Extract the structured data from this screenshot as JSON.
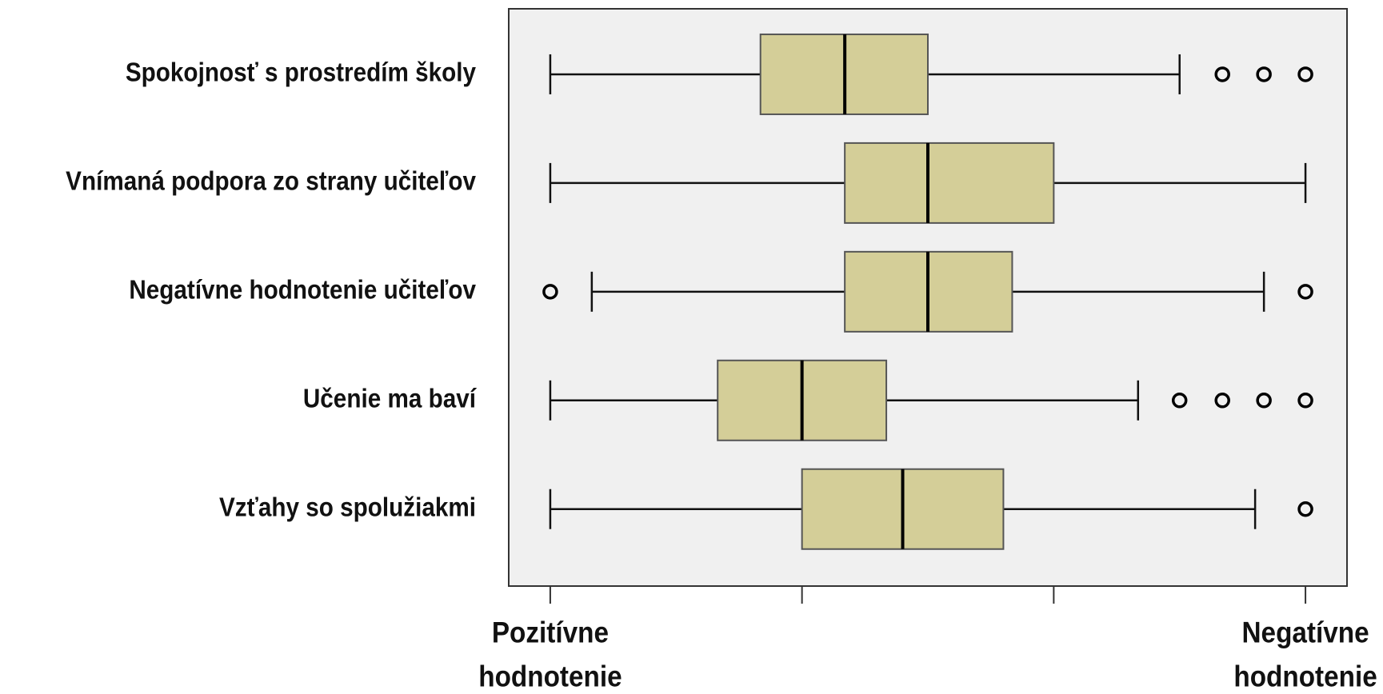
{
  "chart_data": {
    "type": "boxplot",
    "orientation": "horizontal",
    "categories": [
      "Spokojnosť s prostredím školy",
      "Vnímaná podpora zo strany učiteľov",
      "Negatívne hodnotenie učiteľov",
      "Učenie ma baví",
      "Vzťahy so spolužiakmi"
    ],
    "boxes": [
      {
        "whislo": 1.0,
        "q1": 1.835,
        "med": 2.17,
        "q3": 2.5,
        "whishi": 3.5,
        "fliers": [
          3.67,
          3.835,
          4.0
        ]
      },
      {
        "whislo": 1.0,
        "q1": 2.17,
        "med": 2.5,
        "q3": 3.0,
        "whishi": 4.0,
        "fliers": []
      },
      {
        "whislo": 1.165,
        "q1": 2.17,
        "med": 2.5,
        "q3": 2.835,
        "whishi": 3.835,
        "fliers": [
          1.0,
          4.0
        ]
      },
      {
        "whislo": 1.0,
        "q1": 1.665,
        "med": 2.0,
        "q3": 2.335,
        "whishi": 3.335,
        "fliers": [
          3.5,
          3.67,
          3.835,
          4.0
        ]
      },
      {
        "whislo": 1.0,
        "q1": 2.0,
        "med": 2.4,
        "q3": 2.8,
        "whishi": 3.8,
        "fliers": [
          4.0
        ]
      }
    ],
    "color": "#d4ce98",
    "xlim": [
      0.835,
      4.165
    ],
    "xticks": [
      1,
      2,
      3,
      4
    ],
    "x_end_labels": [
      "Pozitívne hodnotenie",
      "Negatívne hodnotenie"
    ]
  }
}
